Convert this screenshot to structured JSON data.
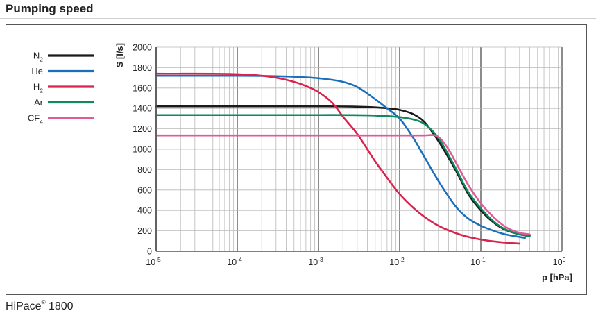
{
  "header": {
    "title": "Pumping speed"
  },
  "footer": {
    "model": "HiPace",
    "reg": "®",
    "number": "1800"
  },
  "chart_data": {
    "type": "line",
    "x_scale": "log",
    "xlim": [
      1e-05,
      1
    ],
    "ylim": [
      0,
      2000
    ],
    "xlabel": "p [hPa]",
    "ylabel": "S [l/s]",
    "x_ticks": [
      {
        "value": 1e-05,
        "base": "10",
        "exp": "-5"
      },
      {
        "value": 0.0001,
        "base": "10",
        "exp": "-4"
      },
      {
        "value": 0.001,
        "base": "10",
        "exp": "-3"
      },
      {
        "value": 0.01,
        "base": "10",
        "exp": "-2"
      },
      {
        "value": 0.1,
        "base": "10",
        "exp": "-1"
      },
      {
        "value": 1,
        "base": "10",
        "exp": "0"
      }
    ],
    "y_ticks": [
      0,
      200,
      400,
      600,
      800,
      1000,
      1200,
      1400,
      1600,
      1800,
      2000
    ],
    "grid": true,
    "legend_position": "left",
    "series": [
      {
        "name": "N",
        "sub": "2",
        "color": "#1a1a1a",
        "x": [
          1e-05,
          0.001,
          0.005,
          0.01,
          0.015,
          0.02,
          0.03,
          0.05,
          0.07,
          0.1,
          0.15,
          0.2,
          0.3,
          0.4
        ],
        "y": [
          1420,
          1420,
          1410,
          1385,
          1340,
          1270,
          1080,
          780,
          560,
          400,
          270,
          210,
          165,
          150
        ]
      },
      {
        "name": "He",
        "sub": "",
        "color": "#1a6fbd",
        "x": [
          1e-05,
          0.0001,
          0.0005,
          0.001,
          0.002,
          0.003,
          0.005,
          0.007,
          0.01,
          0.015,
          0.02,
          0.03,
          0.05,
          0.07,
          0.1,
          0.15,
          0.2,
          0.3,
          0.35
        ],
        "y": [
          1720,
          1720,
          1710,
          1695,
          1660,
          1610,
          1490,
          1400,
          1300,
          1100,
          930,
          690,
          430,
          320,
          250,
          195,
          165,
          140,
          130
        ]
      },
      {
        "name": "H",
        "sub": "2",
        "color": "#d8234c",
        "x": [
          1e-05,
          0.0001,
          0.0002,
          0.0004,
          0.0007,
          0.001,
          0.0015,
          0.002,
          0.003,
          0.005,
          0.007,
          0.01,
          0.015,
          0.02,
          0.03,
          0.05,
          0.07,
          0.1,
          0.15,
          0.2,
          0.3
        ],
        "y": [
          1740,
          1735,
          1720,
          1680,
          1620,
          1560,
          1450,
          1320,
          1150,
          880,
          720,
          560,
          420,
          340,
          250,
          175,
          140,
          115,
          95,
          85,
          75
        ]
      },
      {
        "name": "Ar",
        "sub": "",
        "color": "#0e8a5c",
        "x": [
          1e-05,
          0.001,
          0.005,
          0.01,
          0.015,
          0.02,
          0.03,
          0.05,
          0.07,
          0.1,
          0.15,
          0.2,
          0.3,
          0.4
        ],
        "y": [
          1335,
          1335,
          1330,
          1315,
          1290,
          1250,
          1110,
          800,
          580,
          420,
          280,
          215,
          165,
          145
        ]
      },
      {
        "name": "CF",
        "sub": "4",
        "color": "#e05a9a",
        "x": [
          1e-05,
          0.01,
          0.02,
          0.03,
          0.04,
          0.05,
          0.07,
          0.1,
          0.15,
          0.2,
          0.3,
          0.4
        ],
        "y": [
          1135,
          1135,
          1135,
          1120,
          1000,
          860,
          650,
          470,
          320,
          240,
          180,
          165
        ]
      }
    ]
  }
}
